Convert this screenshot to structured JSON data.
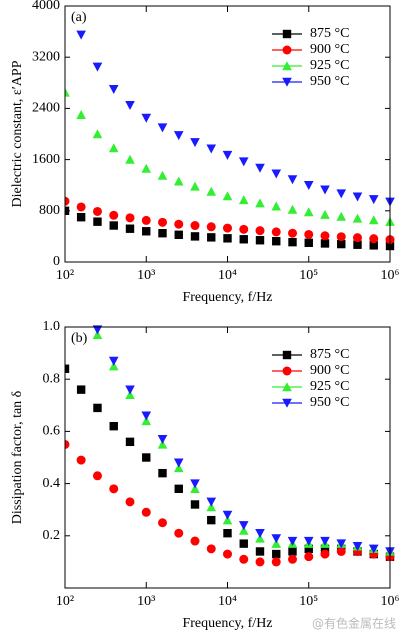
{
  "chart_data": [
    {
      "type": "scatter",
      "annotation": "(a)",
      "x_label": "Frequency, f/Hz",
      "y_label": "Dielectric constant, ε′APP",
      "log_x": true,
      "legend": "upper right",
      "x": [
        100,
        158,
        251,
        398,
        631,
        1000,
        1585,
        2512,
        3981,
        6310,
        10000,
        15849,
        25119,
        39811,
        63096,
        100000,
        158489,
        251189,
        398107,
        630957,
        1000000
      ],
      "xlim": [
        100,
        1000000
      ],
      "xticks": [
        {
          "value": 100,
          "label": "10²"
        },
        {
          "value": 1000,
          "label": "10³"
        },
        {
          "value": 10000,
          "label": "10⁴"
        },
        {
          "value": 100000,
          "label": "10⁵"
        },
        {
          "value": 1000000,
          "label": "10⁶"
        }
      ],
      "ylim": [
        0,
        4000
      ],
      "yticks": [
        0,
        800,
        1600,
        2400,
        3200,
        4000
      ],
      "series": [
        {
          "name": "875 °C",
          "color": "#000000",
          "marker": "square",
          "values": [
            800,
            700,
            630,
            570,
            520,
            480,
            450,
            425,
            400,
            385,
            370,
            355,
            340,
            325,
            310,
            300,
            290,
            280,
            270,
            260,
            250
          ]
        },
        {
          "name": "900 °C",
          "color": "#ff0000",
          "marker": "circle",
          "values": [
            950,
            860,
            790,
            730,
            690,
            650,
            620,
            590,
            570,
            550,
            530,
            510,
            490,
            470,
            450,
            430,
            410,
            395,
            380,
            365,
            350
          ]
        },
        {
          "name": "925 °C",
          "color": "#33ee33",
          "marker": "triangle-up",
          "values": [
            2650,
            2300,
            2000,
            1780,
            1600,
            1460,
            1350,
            1260,
            1180,
            1100,
            1030,
            970,
            920,
            870,
            820,
            780,
            740,
            710,
            680,
            655,
            630
          ]
        },
        {
          "name": "950 °C",
          "color": "#1a1aff",
          "marker": "triangle-down",
          "values": [
            null,
            3550,
            3050,
            2700,
            2450,
            2250,
            2100,
            1980,
            1870,
            1770,
            1670,
            1570,
            1470,
            1380,
            1290,
            1200,
            1130,
            1070,
            1020,
            980,
            940
          ]
        }
      ]
    },
    {
      "type": "scatter",
      "annotation": "(b)",
      "x_label": "Frequency, f/Hz",
      "y_label": "Dissipation factor, tan δ",
      "log_x": true,
      "legend": "upper right",
      "x": [
        100,
        158,
        251,
        398,
        631,
        1000,
        1585,
        2512,
        3981,
        6310,
        10000,
        15849,
        25119,
        39811,
        63096,
        100000,
        158489,
        251189,
        398107,
        630957,
        1000000
      ],
      "xlim": [
        100,
        1000000
      ],
      "xticks": [
        {
          "value": 100,
          "label": "10²"
        },
        {
          "value": 1000,
          "label": "10³"
        },
        {
          "value": 10000,
          "label": "10⁴"
        },
        {
          "value": 100000,
          "label": "10⁵"
        },
        {
          "value": 1000000,
          "label": "10⁶"
        }
      ],
      "ylim": [
        0,
        1
      ],
      "yticks": [
        0.2,
        0.4,
        0.6,
        0.8,
        {
          "value": 1,
          "label": "1.0"
        }
      ],
      "series": [
        {
          "name": "875 °C",
          "color": "#000000",
          "marker": "square",
          "values": [
            0.84,
            0.76,
            0.69,
            0.62,
            0.56,
            0.5,
            0.44,
            0.38,
            0.32,
            0.26,
            0.21,
            0.17,
            0.14,
            0.13,
            0.14,
            0.15,
            0.15,
            0.15,
            0.14,
            0.13,
            0.12
          ]
        },
        {
          "name": "900 °C",
          "color": "#ff0000",
          "marker": "circle",
          "values": [
            0.55,
            0.49,
            0.43,
            0.38,
            0.33,
            0.29,
            0.25,
            0.21,
            0.18,
            0.15,
            0.13,
            0.11,
            0.1,
            0.1,
            0.11,
            0.12,
            0.13,
            0.14,
            0.14,
            0.13,
            0.12
          ]
        },
        {
          "name": "925 °C",
          "color": "#33ee33",
          "marker": "triangle-up",
          "values": [
            null,
            null,
            0.97,
            0.85,
            0.74,
            0.64,
            0.55,
            0.46,
            0.38,
            0.31,
            0.26,
            0.22,
            0.19,
            0.17,
            0.17,
            0.17,
            0.17,
            0.17,
            0.16,
            0.15,
            0.14
          ]
        },
        {
          "name": "950 °C",
          "color": "#1a1aff",
          "marker": "triangle-down",
          "values": [
            null,
            null,
            0.99,
            0.87,
            0.76,
            0.66,
            0.57,
            0.48,
            0.4,
            0.33,
            0.28,
            0.24,
            0.21,
            0.19,
            0.18,
            0.18,
            0.18,
            0.17,
            0.16,
            0.15,
            0.14
          ]
        }
      ]
    }
  ],
  "watermark": "@有色金属在线"
}
